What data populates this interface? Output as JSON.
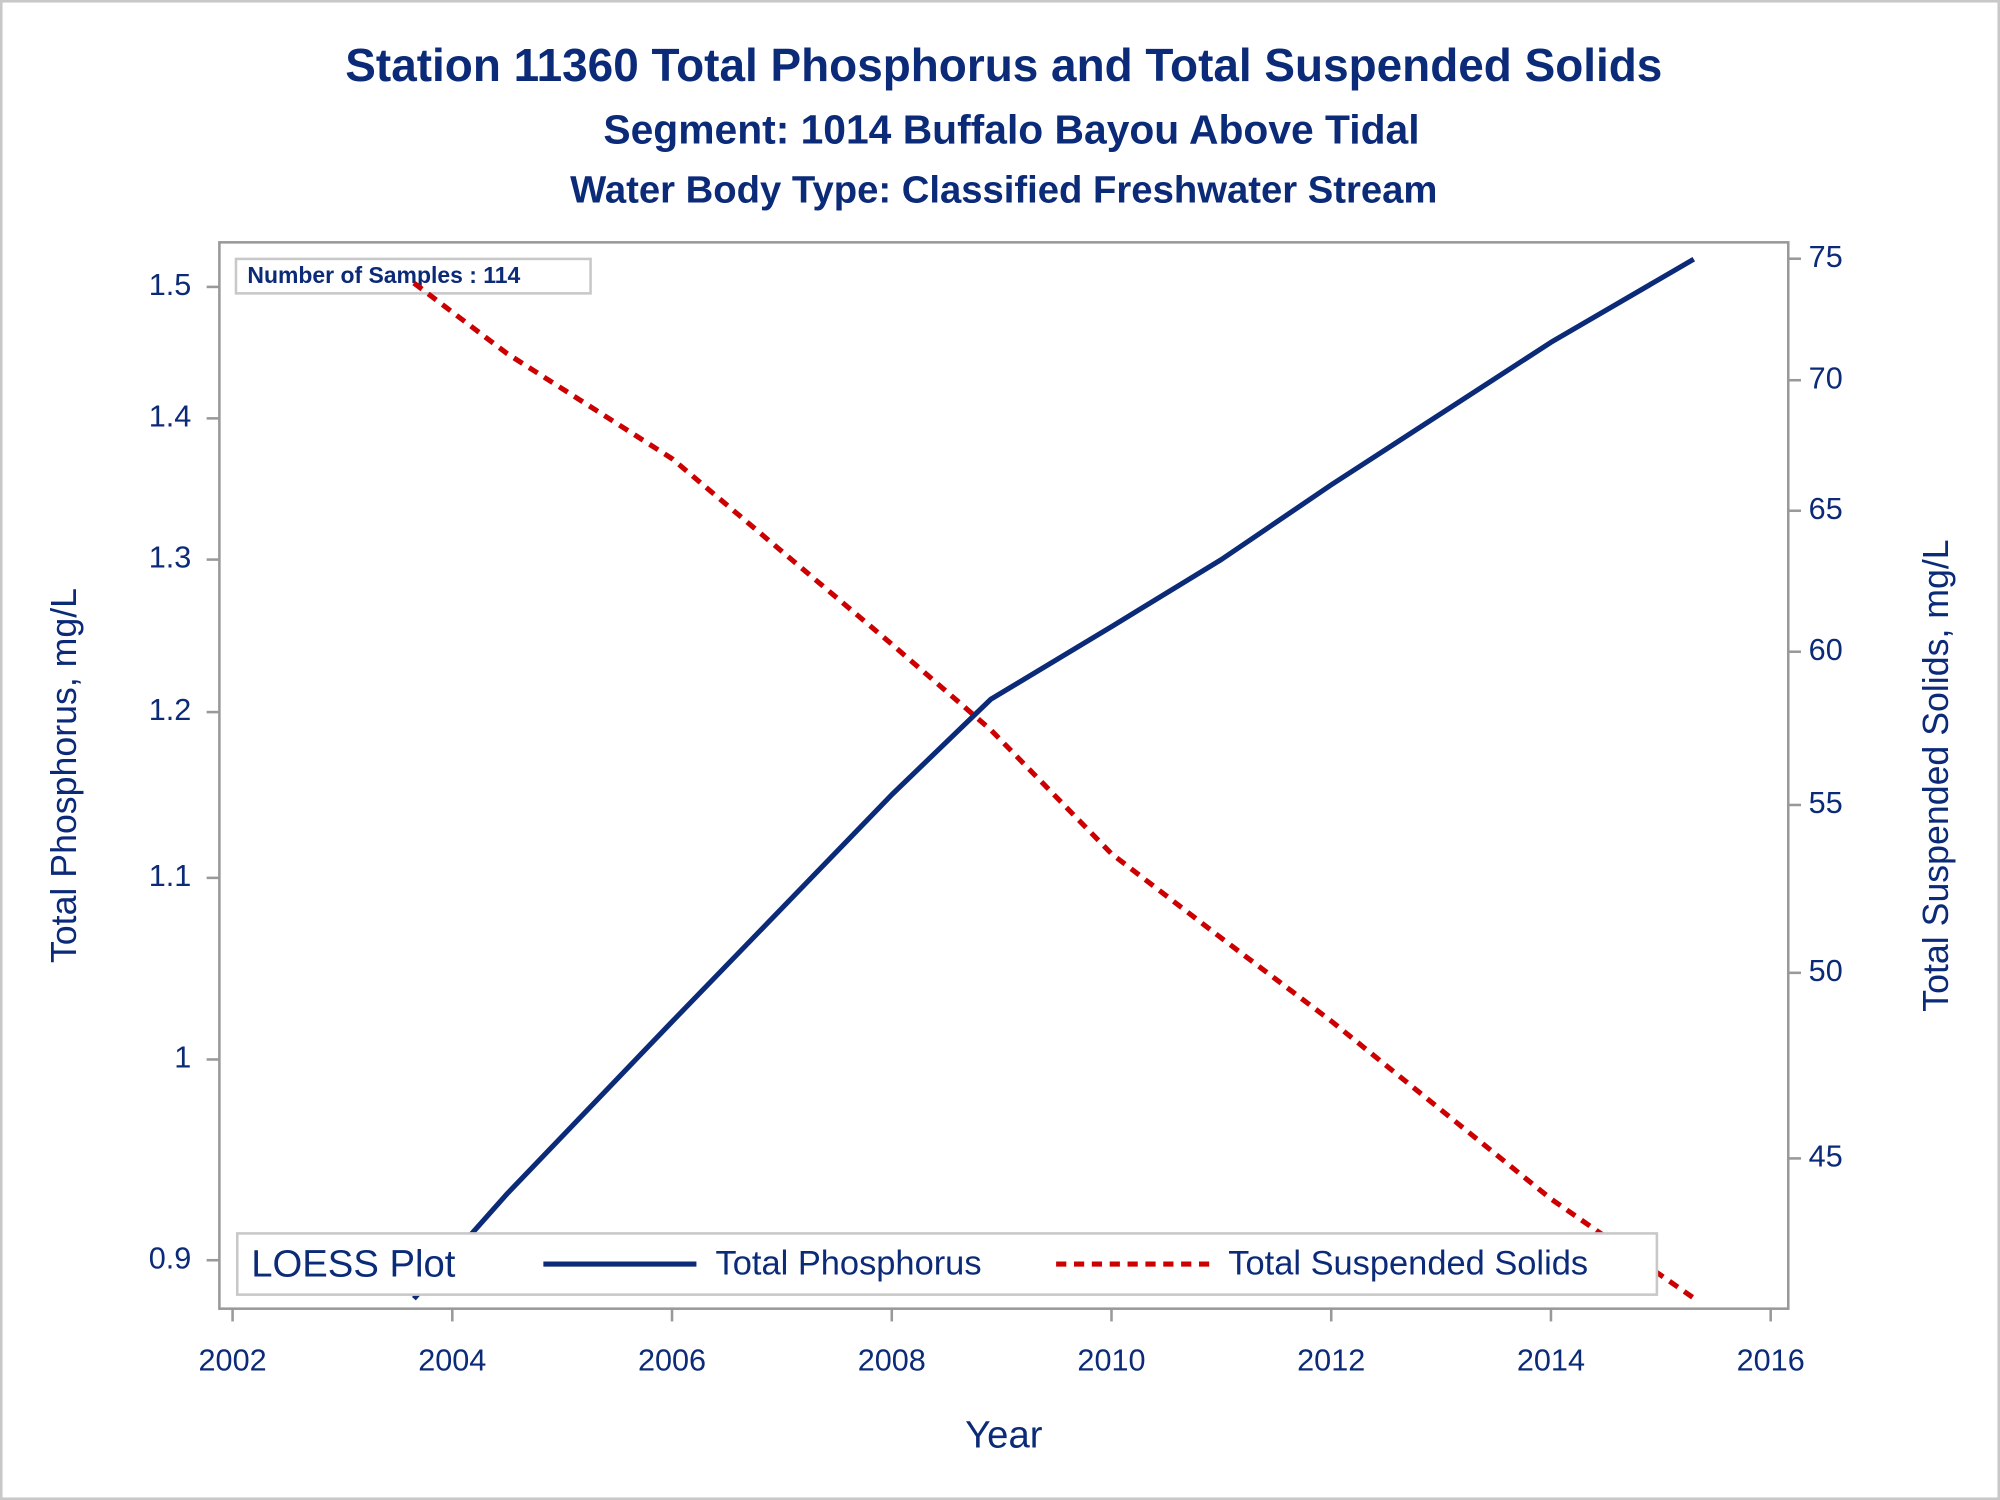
{
  "chart_data": {
    "type": "line",
    "title": "Station 11360  Total Phosphorus and Total Suspended Solids",
    "subtitle": "Segment: 1014  Buffalo Bayou Above Tidal",
    "subtitle2": "Water Body Type: Classified Freshwater Stream",
    "x_label": "Year",
    "y_label": "Total Phosphorus, mg/L",
    "y2_label": "Total Suspended Solids, mg/L",
    "annotation": "Number of Samples : 114",
    "legend_title": "LOESS Plot",
    "legend": "bottom",
    "y_log": true,
    "y2_log": true,
    "x": [
      2003.65,
      2004.5,
      2006,
      2008,
      2008.9,
      2010,
      2011,
      2012,
      2014,
      2015.3
    ],
    "series": [
      {
        "name": "Total Phosphorus",
        "color": "#0b2a78",
        "axis": "y",
        "dash": false,
        "values": [
          0.882,
          0.932,
          1.02,
          1.149,
          1.208,
          1.255,
          1.3,
          1.352,
          1.457,
          1.522
        ]
      },
      {
        "name": "Total Suspended Solids",
        "color": "#cc0000",
        "axis": "y2",
        "dash": true,
        "values": [
          73.97,
          71.06,
          66.95,
          60.26,
          57.4,
          53.5,
          51.0,
          48.65,
          43.98,
          41.57
        ]
      }
    ],
    "xlim": [
      2001.88,
      2016.16
    ],
    "xticks": [
      2002,
      2004,
      2006,
      2008,
      2010,
      2012,
      2014,
      2016
    ],
    "ylim": [
      0.8774,
      1.5355
    ],
    "yticks": [
      0.9,
      1,
      1.1,
      1.2,
      1.3,
      1.4,
      1.5
    ],
    "y2lim": [
      41.32,
      75.7
    ],
    "y2ticks": [
      45,
      50,
      55,
      60,
      65,
      70,
      75
    ]
  }
}
